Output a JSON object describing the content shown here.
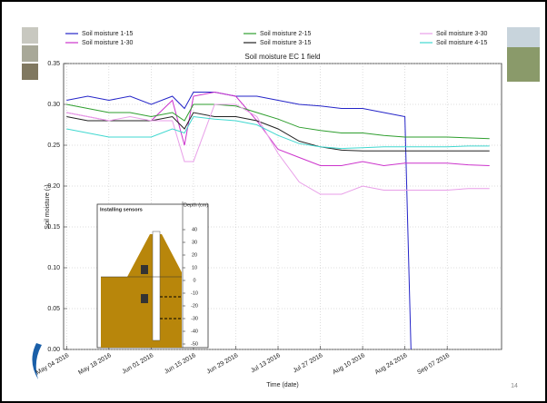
{
  "chart_data": {
    "type": "line",
    "title": "Soil moisture EC 1 field",
    "x_label": "Time (date)",
    "y_label": "Soil moisture (-)",
    "x": [
      "2016-05-04",
      "2016-05-11",
      "2016-05-18",
      "2016-05-25",
      "2016-06-01",
      "2016-06-08",
      "2016-06-12",
      "2016-06-15",
      "2016-06-22",
      "2016-06-29",
      "2016-07-06",
      "2016-07-13",
      "2016-07-20",
      "2016-07-27",
      "2016-08-03",
      "2016-08-10",
      "2016-08-17",
      "2016-08-24",
      "2016-08-26",
      "2016-08-31",
      "2016-09-07",
      "2016-09-14",
      "2016-09-21"
    ],
    "xlim": [
      "2016-05-03",
      "2016-09-25"
    ],
    "xticks": [
      {
        "value": "2016-05-04",
        "label": "May 04 2016"
      },
      {
        "value": "2016-05-18",
        "label": "May 18 2016"
      },
      {
        "value": "2016-06-01",
        "label": "Jun 01 2016"
      },
      {
        "value": "2016-06-15",
        "label": "Jun 15 2016"
      },
      {
        "value": "2016-06-29",
        "label": "Jun 29 2016"
      },
      {
        "value": "2016-07-13",
        "label": "Jul 13 2016"
      },
      {
        "value": "2016-07-27",
        "label": "Jul 27 2016"
      },
      {
        "value": "2016-08-10",
        "label": "Aug 10 2016"
      },
      {
        "value": "2016-08-24",
        "label": "Aug 24 2016"
      },
      {
        "value": "2016-09-07",
        "label": "Sep 07 2016"
      }
    ],
    "ylim": [
      0,
      0.35
    ],
    "yticks": [
      {
        "value": 0,
        "label": "0.00"
      },
      0.05,
      {
        "value": 0.1,
        "label": "0.10"
      },
      0.15,
      {
        "value": 0.2,
        "label": "0.20"
      },
      0.25,
      {
        "value": 0.3,
        "label": "0.30"
      },
      0.35
    ],
    "grid": true,
    "series": [
      {
        "name": "Soil moisture 1-15",
        "color": "#2424c8",
        "values": [
          0.305,
          0.31,
          0.305,
          0.31,
          0.3,
          0.31,
          0.295,
          0.315,
          0.315,
          0.31,
          0.31,
          0.305,
          0.3,
          0.298,
          0.295,
          0.295,
          0.29,
          0.285,
          0.0,
          null,
          null,
          null,
          null
        ]
      },
      {
        "name": "Soil moisture 1-30",
        "color": "#cc33cc",
        "values": [
          0.29,
          0.285,
          0.28,
          0.28,
          0.28,
          0.305,
          0.25,
          0.31,
          0.315,
          0.31,
          0.28,
          0.245,
          0.235,
          0.225,
          0.225,
          0.23,
          0.225,
          0.228,
          0.228,
          0.228,
          0.228,
          0.226,
          0.225
        ]
      },
      {
        "name": "Soil moisture 2-15",
        "color": "#2e9e2e",
        "values": [
          0.3,
          0.295,
          0.29,
          0.29,
          0.285,
          0.29,
          0.28,
          0.3,
          0.3,
          0.298,
          0.29,
          0.282,
          0.272,
          0.268,
          0.265,
          0.265,
          0.262,
          0.26,
          0.26,
          0.26,
          0.26,
          0.259,
          0.258
        ]
      },
      {
        "name": "Soil moisture 3-15",
        "color": "#222222",
        "values": [
          0.285,
          0.28,
          0.28,
          0.28,
          0.28,
          0.285,
          0.27,
          0.29,
          0.285,
          0.285,
          0.28,
          0.27,
          0.255,
          0.248,
          0.244,
          0.243,
          0.243,
          0.243,
          0.243,
          0.243,
          0.243,
          0.243,
          0.243
        ]
      },
      {
        "name": "Soil moisture 3-30",
        "color": "#e89ee8",
        "values": [
          0.29,
          0.285,
          0.28,
          0.285,
          0.28,
          0.28,
          0.23,
          0.23,
          0.3,
          0.3,
          0.285,
          0.24,
          0.205,
          0.19,
          0.19,
          0.2,
          0.195,
          0.195,
          0.195,
          0.195,
          0.195,
          0.197,
          0.197
        ]
      },
      {
        "name": "Soil moisture 4-15",
        "color": "#40d8d0",
        "values": [
          0.27,
          0.265,
          0.26,
          0.26,
          0.26,
          0.27,
          0.265,
          0.285,
          0.282,
          0.28,
          0.275,
          0.262,
          0.252,
          0.248,
          0.246,
          0.247,
          0.248,
          0.248,
          0.248,
          0.248,
          0.248,
          0.249,
          0.249
        ]
      }
    ],
    "inset": {
      "title": "Installing sensors",
      "axis_label": "Depth (cm)",
      "ticks": [
        40,
        30,
        20,
        10,
        0,
        -10,
        -20,
        -30,
        -40,
        -50
      ]
    }
  },
  "slide": {
    "page_number": "14"
  }
}
